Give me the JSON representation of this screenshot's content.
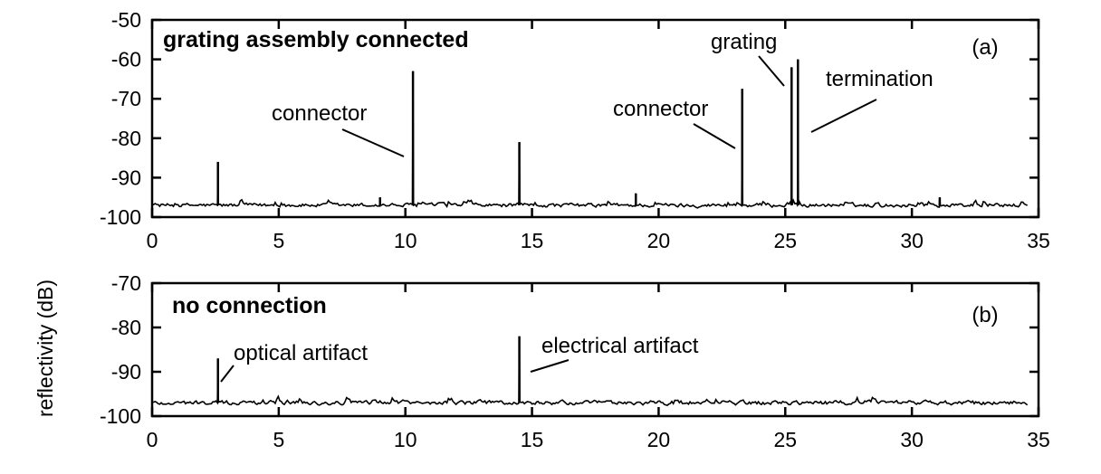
{
  "chart_data": [
    {
      "type": "line",
      "title": "grating assembly connected",
      "panel_label": "(a)",
      "ylabel": "reflectivity (dB)",
      "xlim": [
        0,
        35
      ],
      "ylim": [
        -100,
        -50
      ],
      "x_ticks": [
        0,
        5,
        10,
        15,
        20,
        25,
        30,
        35
      ],
      "y_ticks": [
        -100,
        -90,
        -80,
        -70,
        -60,
        -50
      ],
      "baseline": -97,
      "x_max": 34.6,
      "peaks": [
        {
          "x": 2.6,
          "y": -86
        },
        {
          "x": 9.0,
          "y": -95
        },
        {
          "x": 10.3,
          "y": -63
        },
        {
          "x": 14.5,
          "y": -81
        },
        {
          "x": 19.1,
          "y": -94
        },
        {
          "x": 23.3,
          "y": -67.5
        },
        {
          "x": 25.25,
          "y": -62
        },
        {
          "x": 25.5,
          "y": -60
        },
        {
          "x": 31.1,
          "y": -95
        }
      ],
      "annotations": [
        {
          "text": "connector",
          "target_x": 10.3
        },
        {
          "text": "connector",
          "target_x": 23.3
        },
        {
          "text": "grating",
          "target_x": 25.25
        },
        {
          "text": "termination",
          "target_x": 25.5
        }
      ]
    },
    {
      "type": "line",
      "title": "no connection",
      "panel_label": "(b)",
      "ylabel": "reflectivity (dB)",
      "xlim": [
        0,
        35
      ],
      "ylim": [
        -100,
        -70
      ],
      "x_ticks": [
        0,
        5,
        10,
        15,
        20,
        25,
        30,
        35
      ],
      "y_ticks": [
        -100,
        -90,
        -80,
        -70
      ],
      "baseline": -97,
      "x_max": 34.6,
      "peaks": [
        {
          "x": 2.6,
          "y": -87
        },
        {
          "x": 14.5,
          "y": -82
        }
      ],
      "annotations": [
        {
          "text": "optical artifact",
          "target_x": 2.6
        },
        {
          "text": "electrical artifact",
          "target_x": 14.5
        }
      ]
    }
  ]
}
